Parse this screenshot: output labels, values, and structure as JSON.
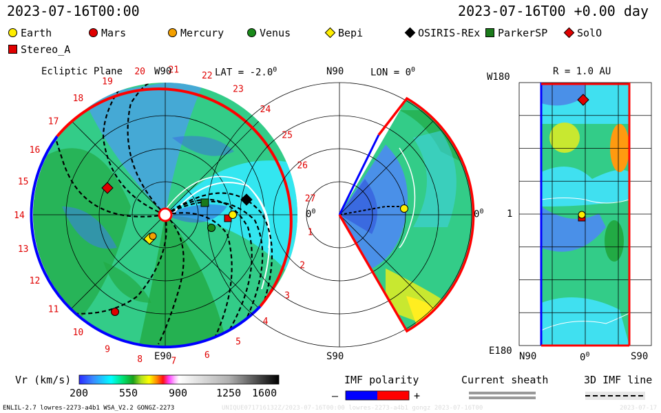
{
  "header": {
    "datetime_left": "2023-07-16T00:00",
    "datetime_right": "2023-07-16T00 +0.00 day"
  },
  "legend": {
    "items": [
      {
        "label": "Earth",
        "marker": "circle",
        "color": "#ffee00"
      },
      {
        "label": "Mars",
        "marker": "circle",
        "color": "#e00000"
      },
      {
        "label": "Mercury",
        "marker": "circle",
        "color": "#f4a000"
      },
      {
        "label": "Venus",
        "marker": "circle",
        "color": "#1a8a1a"
      },
      {
        "label": "Bepi",
        "marker": "diamond",
        "color": "#ffee00"
      },
      {
        "label": "OSIRIS-REx",
        "marker": "diamond",
        "color": "#000000"
      },
      {
        "label": "ParkerSP",
        "marker": "square",
        "color": "#1a7a1a"
      },
      {
        "label": "SolO",
        "marker": "diamond",
        "color": "#e00000"
      },
      {
        "label": "Stereo_A",
        "marker": "square",
        "color": "#e00000"
      }
    ]
  },
  "panels": {
    "ecliptic": {
      "title": "Ecliptic Plane",
      "top_label": "W90",
      "bottom_label": "E90",
      "right_label": "0",
      "right_label_sup": "0",
      "lat_label": "LAT = -2.0",
      "lat_sup": "0",
      "carrington_labels": [
        "1",
        "2",
        "3",
        "4",
        "5",
        "6",
        "7",
        "8",
        "9",
        "10",
        "11",
        "12",
        "13",
        "14",
        "15",
        "16",
        "17",
        "18",
        "19",
        "20",
        "21",
        "22",
        "23",
        "24",
        "25",
        "26",
        "27"
      ]
    },
    "meridional": {
      "top_label": "N90",
      "bottom_label": "S90",
      "lon_label": "LON = 0",
      "lon_sup": "0",
      "right_label": "0",
      "right_label_sup": "0"
    },
    "latlon": {
      "title": "R = 1.0 AU",
      "top_left_label": "W180",
      "mid_left_label": "1",
      "bottom_left_label": "E180",
      "x_labels": [
        "N90",
        "0",
        "S90"
      ],
      "x_label_0_sup": "0"
    }
  },
  "colorbar": {
    "title": "Vr (km/s)",
    "ticks": [
      "200",
      "550",
      "900",
      "1250",
      "1600"
    ],
    "range": [
      200,
      1600
    ]
  },
  "imf": {
    "title": "IMF polarity",
    "minus": "–",
    "plus": "+",
    "neg_color": "#0000ff",
    "pos_color": "#ff0000"
  },
  "sheath": {
    "title": "Current sheath"
  },
  "imf3d": {
    "title": "3D IMF line"
  },
  "footer": {
    "left": "ENLIL-2.7 lowres-2273-a4b1 WSA_V2.2 GONGZ-2273",
    "watermark": "UNIQUE071716132Z/2023-07-16T00:00 lowres-2273-a4b1 gongz 2023-07-16T00",
    "right": "2023-07-17"
  }
}
